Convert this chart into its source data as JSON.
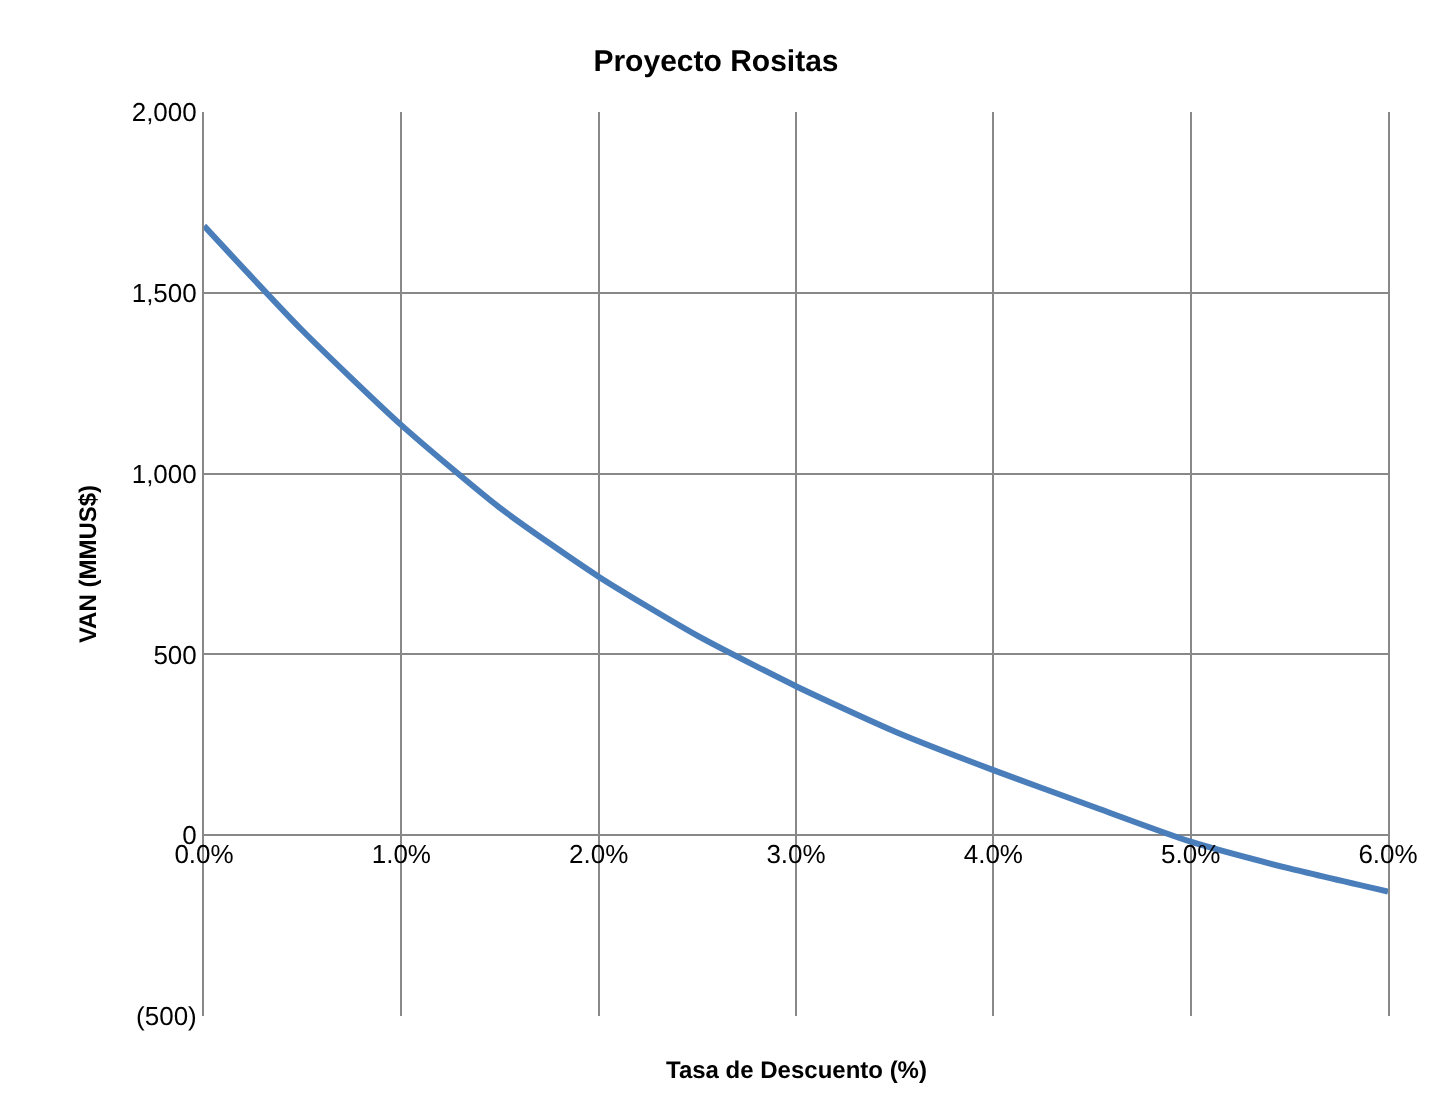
{
  "chart_data": {
    "type": "line",
    "title": "Proyecto Rositas",
    "xlabel": "Tasa de Descuento (%)",
    "ylabel": "VAN (MMUS$)",
    "x": [
      0,
      0.5,
      1,
      1.5,
      2,
      2.5,
      3,
      3.5,
      4,
      4.5,
      5,
      5.5,
      6
    ],
    "series": [
      {
        "color": "#4a7ebb",
        "values": [
          1685,
          1395,
          1134,
          905,
          715,
          552,
          412,
          287,
          180,
          80,
          -18,
          -92,
          -156
        ]
      }
    ],
    "xlim": [
      0,
      6
    ],
    "xticks": [
      {
        "value": 0,
        "label": "0.0%"
      },
      {
        "value": 1,
        "label": "1.0%"
      },
      {
        "value": 2,
        "label": "2.0%"
      },
      {
        "value": 3,
        "label": "3.0%"
      },
      {
        "value": 4,
        "label": "4.0%"
      },
      {
        "value": 5,
        "label": "5.0%"
      },
      {
        "value": 6,
        "label": "6.0%"
      }
    ],
    "ylim": [
      -500,
      2000
    ],
    "yticks": [
      {
        "value": -500,
        "label": "(500)"
      },
      0,
      500,
      {
        "value": 1000,
        "label": "1,000"
      },
      {
        "value": 1500,
        "label": "1,500"
      },
      {
        "value": 2000,
        "label": "2,000"
      }
    ],
    "grid": true,
    "legend": false,
    "marker": "none",
    "line_style": "solid"
  }
}
